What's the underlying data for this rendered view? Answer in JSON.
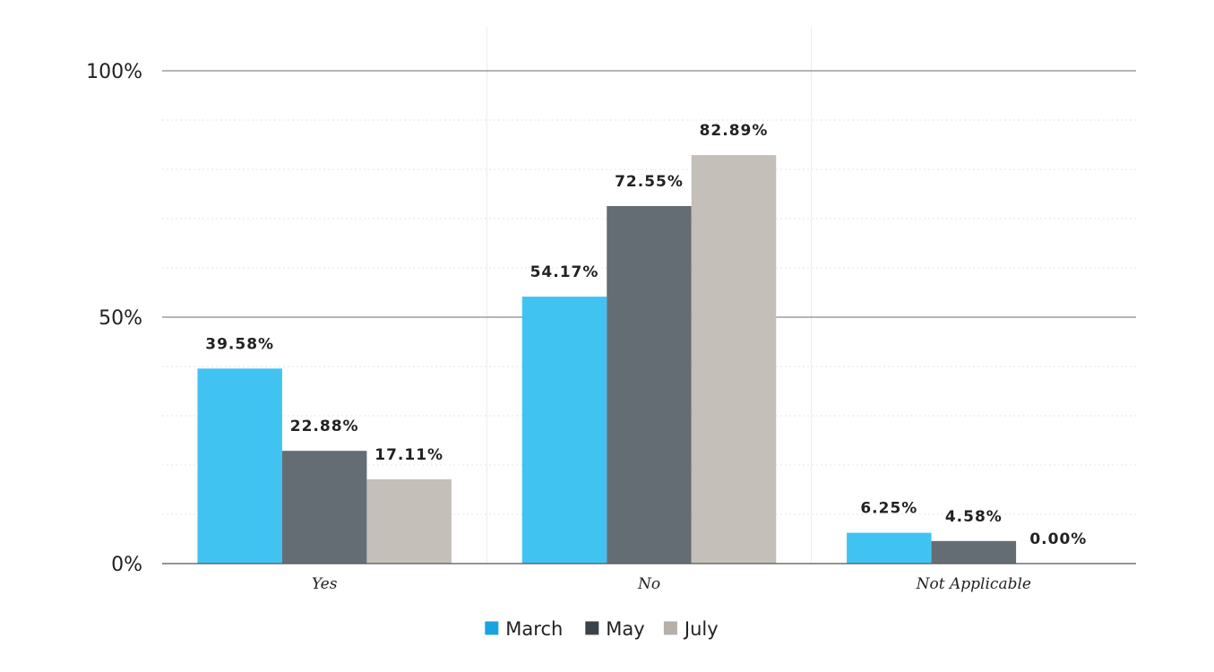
{
  "chart_data": {
    "type": "bar",
    "categories": [
      "Yes",
      "No",
      "Not Applicable"
    ],
    "series": [
      {
        "name": "March",
        "values": [
          39.58,
          54.17,
          6.25
        ],
        "labels": [
          "39.58%",
          "54.17%",
          "6.25%"
        ],
        "color": "#41C3F2",
        "legend_color": "#1BA3E0"
      },
      {
        "name": "May",
        "values": [
          22.88,
          72.55,
          4.58
        ],
        "labels": [
          "22.88%",
          "72.55%",
          "4.58%"
        ],
        "color": "#656D74",
        "legend_color": "#3B434A"
      },
      {
        "name": "July",
        "values": [
          17.11,
          82.89,
          0.0
        ],
        "labels": [
          "17.11%",
          "82.89%",
          "0.00%"
        ],
        "color": "#C4BFB8",
        "legend_color": "#B6B0A8"
      }
    ],
    "y_ticks": [
      {
        "value": 100,
        "label": "100%"
      },
      {
        "value": 50,
        "label": "50%"
      },
      {
        "value": 0,
        "label": "0%"
      }
    ],
    "ylim": [
      0,
      100
    ],
    "minor_grid_step": 10,
    "grid": true,
    "legend": "bottom",
    "title": "",
    "xlabel": "",
    "ylabel": ""
  }
}
